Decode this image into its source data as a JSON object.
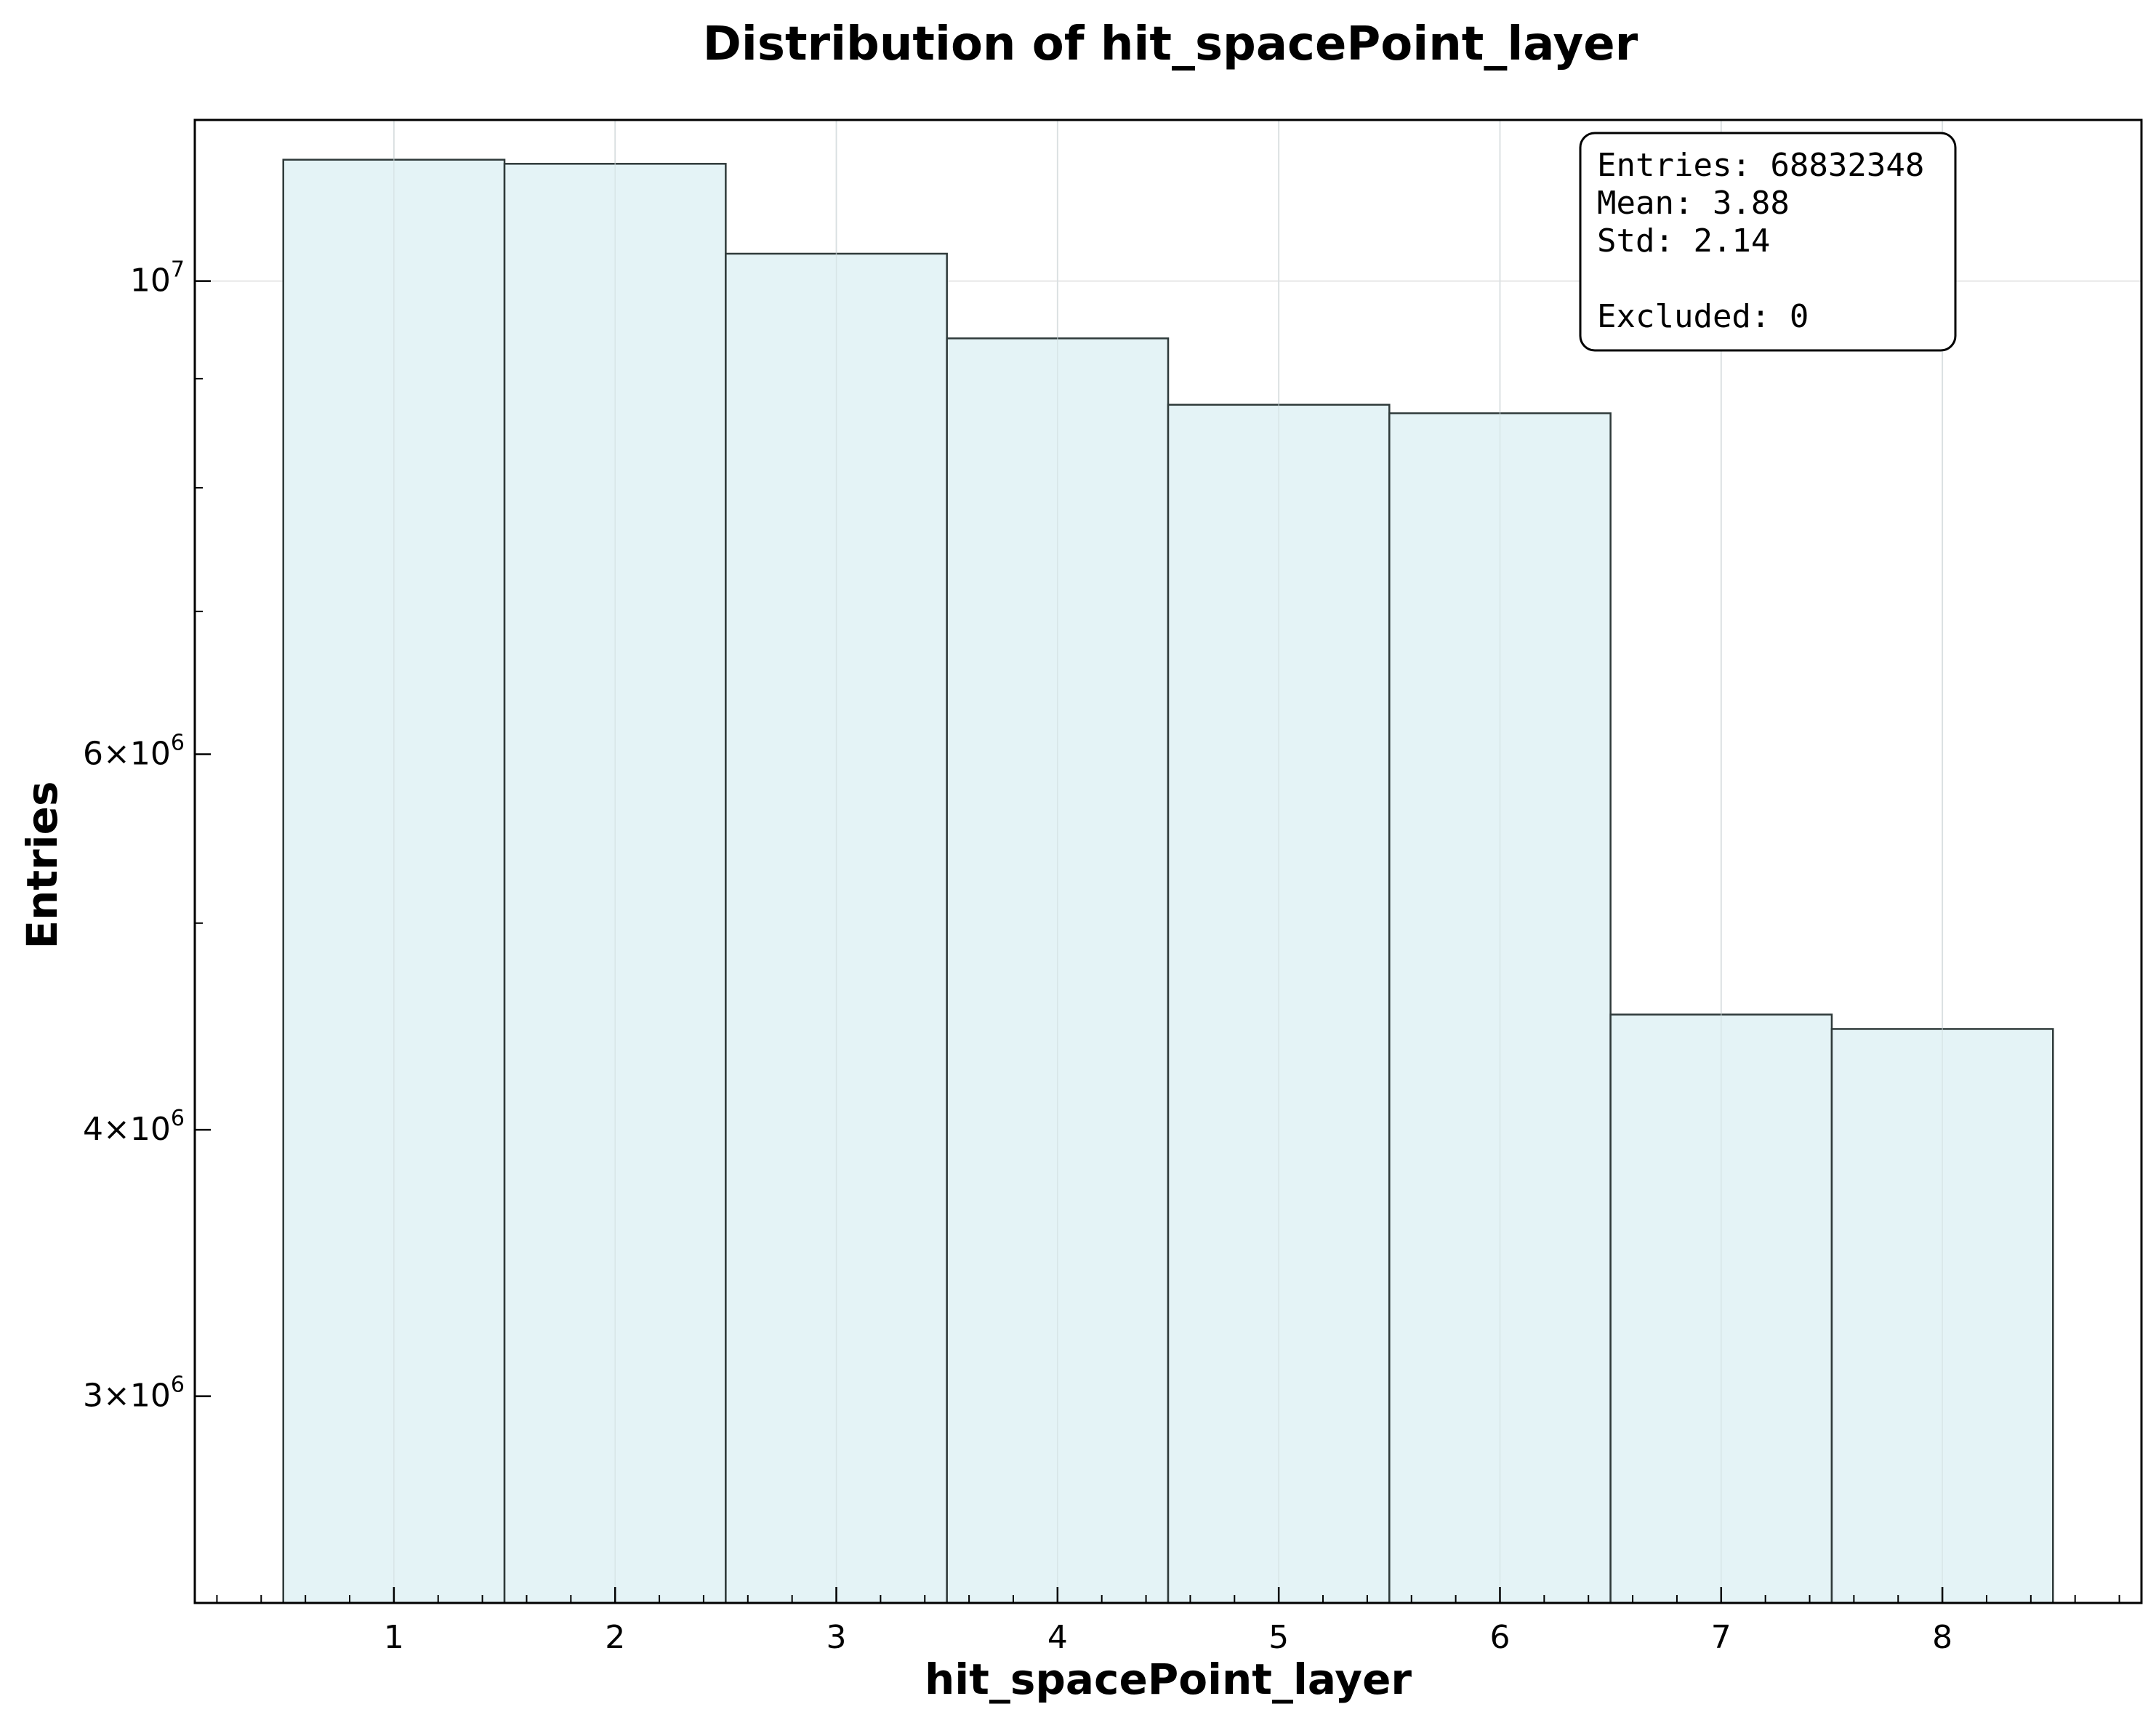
{
  "chart_data": {
    "type": "bar",
    "title": "Distribution of hit_spacePoint_layer",
    "xlabel": "hit_spacePoint_layer",
    "ylabel": "Entries",
    "categories": [
      "1",
      "2",
      "3",
      "4",
      "5",
      "6",
      "7",
      "8"
    ],
    "bin_centers": [
      1,
      2,
      3,
      4,
      5,
      6,
      7,
      8
    ],
    "values": [
      11400000,
      11350000,
      10300000,
      9400000,
      8750000,
      8670000,
      4530000,
      4460000
    ],
    "xlim": [
      0.1,
      8.9
    ],
    "ylim": [
      2400000,
      11900000
    ],
    "yscale": "log",
    "y_ticks": [
      {
        "value": 3000000,
        "mantissa": "3",
        "base": "10",
        "exp": "6"
      },
      {
        "value": 4000000,
        "mantissa": "4",
        "base": "10",
        "exp": "6"
      },
      {
        "value": 6000000,
        "mantissa": "6",
        "base": "10",
        "exp": "6"
      },
      {
        "value": 10000000,
        "mantissa": "",
        "base": "10",
        "exp": "7"
      }
    ],
    "y_minor_ticks": [
      5000000,
      7000000,
      8000000,
      9000000
    ],
    "grid": true,
    "bar_color": "#e4f3f6",
    "edge_color": "#2f3a3a",
    "stats_box": {
      "lines": [
        "Entries: 68832348",
        "Mean: 3.88",
        "Std: 2.14",
        "",
        "Excluded: 0"
      ],
      "placement": "top-right"
    }
  }
}
